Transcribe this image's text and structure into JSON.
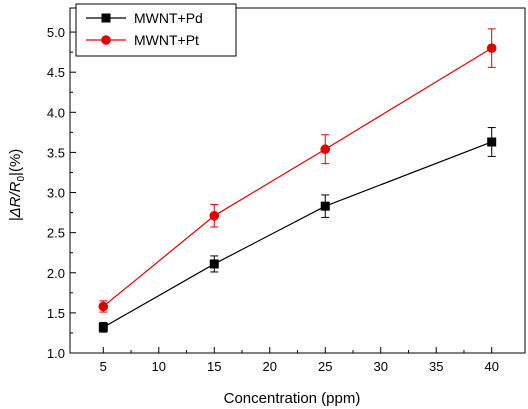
{
  "chart_data": {
    "type": "line",
    "x": [
      5,
      15,
      25,
      40
    ],
    "xlabel": "Concentration  (ppm)",
    "ylabel": {
      "prefix": "|ΔR/R",
      "subscript": "0",
      "suffix": "|(%)"
    },
    "xlim": [
      2,
      43
    ],
    "ylim": [
      1.0,
      5.3
    ],
    "xticks": [
      "5",
      "10",
      "15",
      "20",
      "25",
      "30",
      "35",
      "40"
    ],
    "yticks": [
      "1.0",
      "1.5",
      "2.0",
      "2.5",
      "3.0",
      "3.5",
      "4.0",
      "4.5",
      "5.0"
    ],
    "legend_position": "top-left",
    "grid": false,
    "series": [
      {
        "name": "MWNT+Pd",
        "color": "#000000",
        "marker": "square",
        "values": [
          1.32,
          2.11,
          2.83,
          3.63
        ],
        "errors": [
          0.06,
          0.1,
          0.14,
          0.18
        ]
      },
      {
        "name": "MWNT+Pt",
        "color": "#e00000",
        "marker": "circle",
        "values": [
          1.58,
          2.71,
          3.54,
          4.8
        ],
        "errors": [
          0.07,
          0.14,
          0.18,
          0.24
        ]
      }
    ]
  }
}
